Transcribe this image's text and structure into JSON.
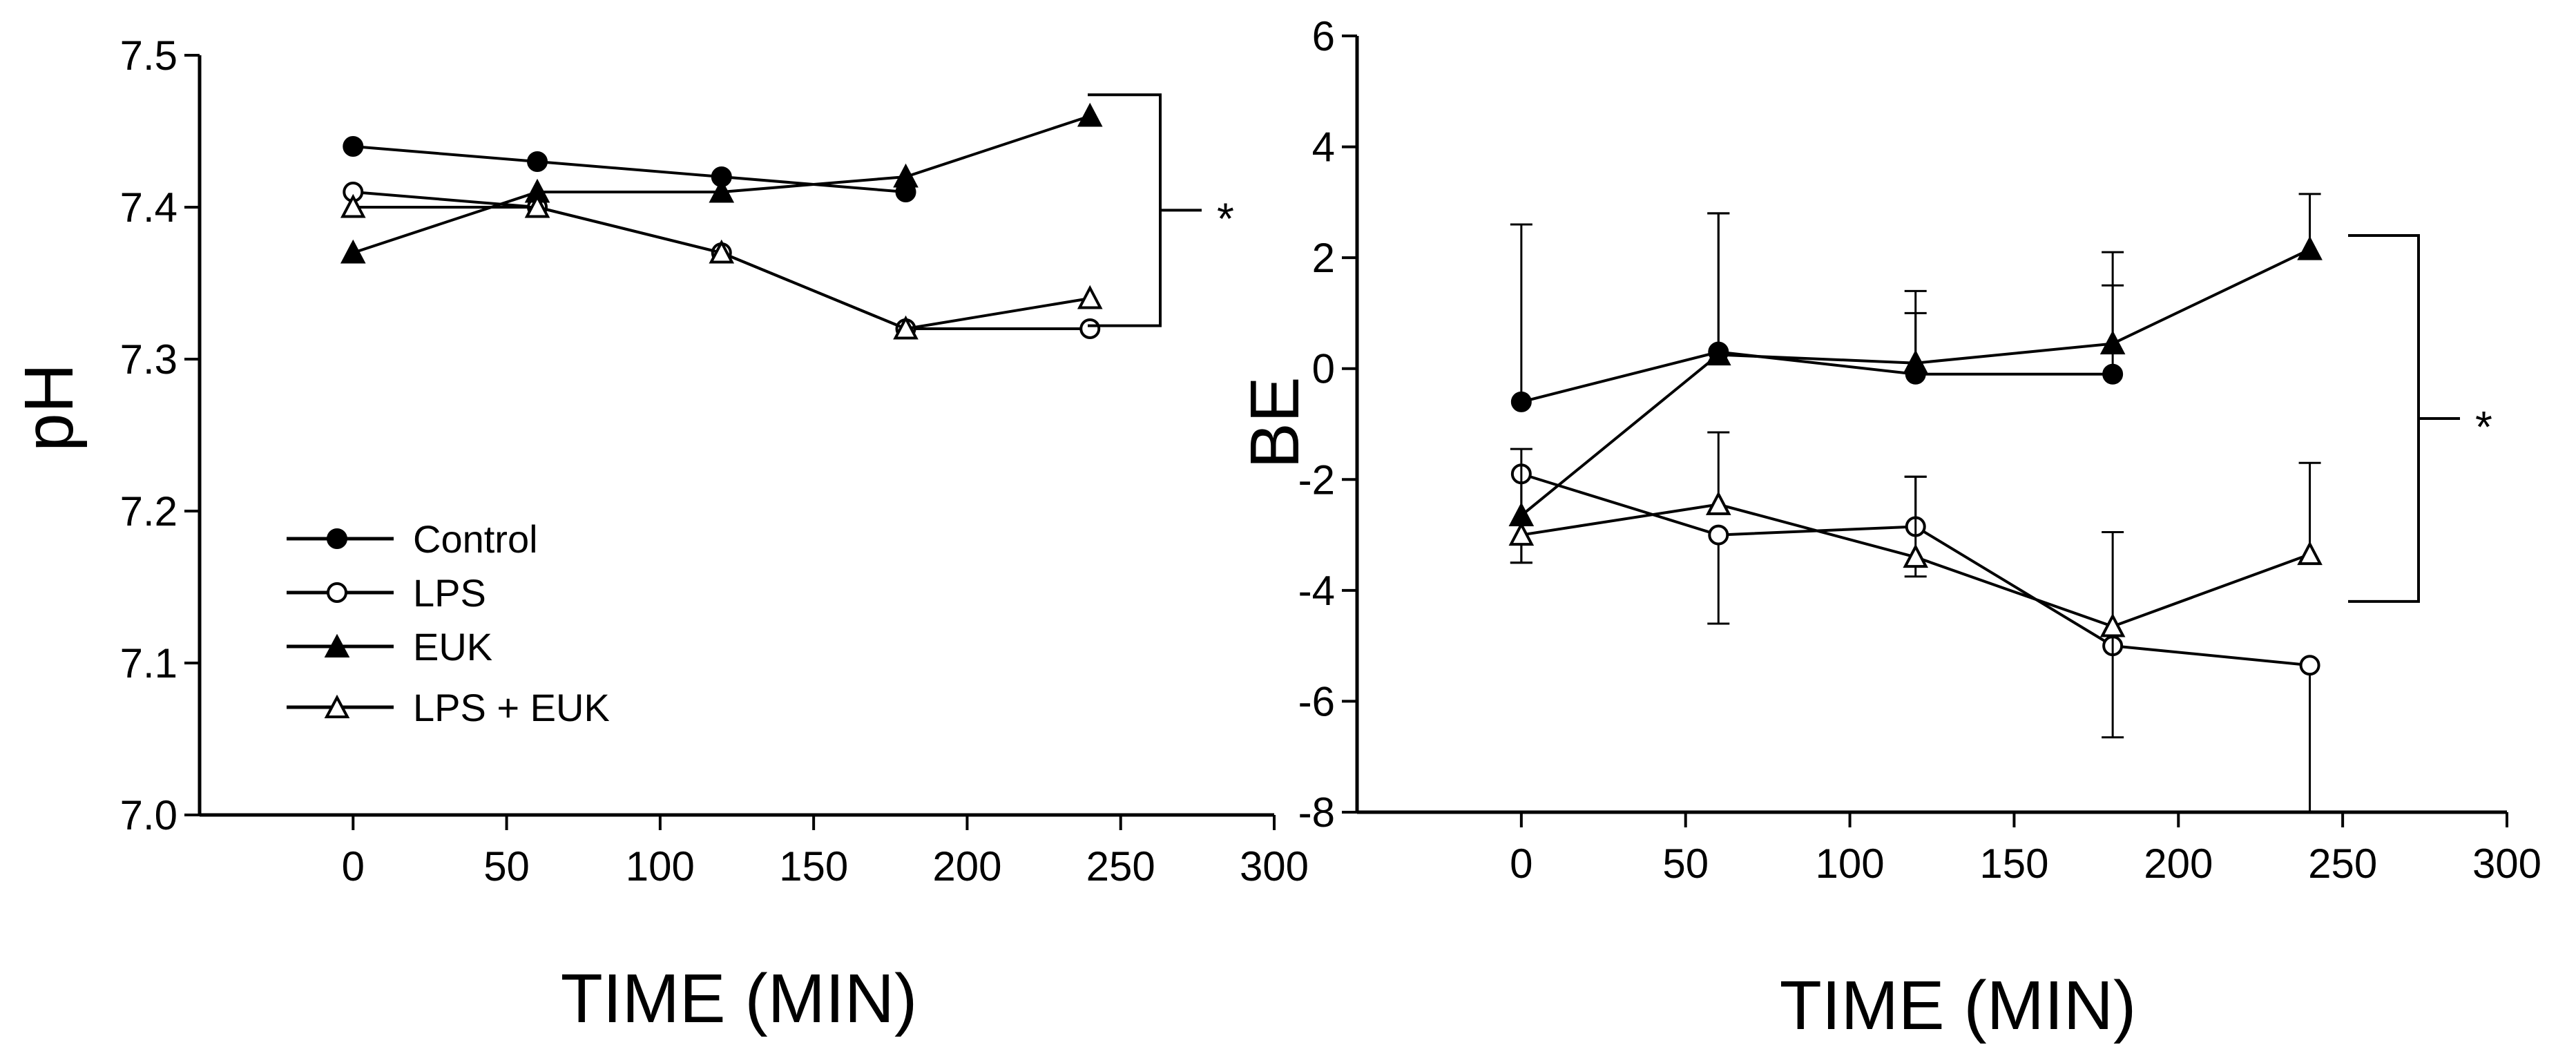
{
  "chart_data": [
    {
      "type": "line",
      "panel": "left",
      "title": "",
      "xlabel": "TIME (MIN)",
      "ylabel": "pH",
      "xlim": [
        -50,
        300
      ],
      "ylim": [
        7.0,
        7.5
      ],
      "xticks": [
        0,
        50,
        100,
        150,
        200,
        250,
        300
      ],
      "yticks": [
        7.0,
        7.1,
        7.2,
        7.3,
        7.4,
        7.5
      ],
      "x_tick_labels": [
        "0",
        "50",
        "100",
        "150",
        "200",
        "250",
        "300"
      ],
      "y_tick_labels": [
        "7.0",
        "7.1",
        "7.2",
        "7.3",
        "7.4",
        "7.5"
      ],
      "legend_position": "lower-left",
      "significance_label": "*",
      "series": [
        {
          "name": "Control",
          "marker": "filled-circle",
          "x": [
            0,
            60,
            120,
            180
          ],
          "values": [
            7.44,
            7.43,
            7.42,
            7.41
          ]
        },
        {
          "name": "LPS",
          "marker": "open-circle",
          "x": [
            0,
            60,
            120,
            180,
            240
          ],
          "values": [
            7.41,
            7.4,
            7.37,
            7.32,
            7.32
          ]
        },
        {
          "name": "EUK",
          "marker": "filled-triangle",
          "x": [
            0,
            60,
            120,
            180,
            240
          ],
          "values": [
            7.37,
            7.41,
            7.41,
            7.42,
            7.46
          ]
        },
        {
          "name": "LPS + EUK",
          "marker": "open-triangle",
          "x": [
            0,
            60,
            120,
            180,
            240
          ],
          "values": [
            7.4,
            7.4,
            7.37,
            7.32,
            7.34
          ]
        }
      ]
    },
    {
      "type": "line",
      "panel": "right",
      "title": "",
      "xlabel": "TIME (MIN)",
      "ylabel": "BE",
      "xlim": [
        -50,
        300
      ],
      "ylim": [
        -8,
        6
      ],
      "xticks": [
        0,
        50,
        100,
        150,
        200,
        250,
        300
      ],
      "yticks": [
        -8,
        -6,
        -4,
        -2,
        0,
        2,
        4,
        6
      ],
      "x_tick_labels": [
        "0",
        "50",
        "100",
        "150",
        "200",
        "250",
        "300"
      ],
      "y_tick_labels": [
        "-8",
        "-6",
        "-4",
        "-2",
        "0",
        "2",
        "4",
        "6"
      ],
      "significance_label": "*",
      "series": [
        {
          "name": "Control",
          "marker": "filled-circle",
          "x": [
            0,
            60,
            120,
            180
          ],
          "values": [
            -0.6,
            0.3,
            -0.1,
            -0.1
          ],
          "error_up": [
            3.2,
            2.5,
            1.1,
            1.6
          ],
          "error_down": [
            0,
            0,
            0,
            0
          ]
        },
        {
          "name": "LPS",
          "marker": "open-circle",
          "x": [
            0,
            60,
            120,
            180,
            240
          ],
          "values": [
            -1.9,
            -3.0,
            -2.85,
            -5.0,
            -5.35
          ],
          "error_up": [
            0,
            0,
            0.9,
            0,
            0
          ],
          "error_down": [
            1.6,
            1.6,
            0,
            0,
            2.65
          ]
        },
        {
          "name": "EUK",
          "marker": "filled-triangle",
          "x": [
            0,
            60,
            120,
            180,
            240
          ],
          "values": [
            -2.65,
            0.25,
            0.1,
            0.45,
            2.15
          ],
          "error_up": [
            0,
            2.55,
            1.3,
            1.65,
            1.0
          ],
          "error_down": [
            0,
            0,
            0,
            0,
            0
          ]
        },
        {
          "name": "LPS + EUK",
          "marker": "open-triangle",
          "x": [
            0,
            60,
            120,
            180,
            240
          ],
          "values": [
            -3.0,
            -2.45,
            -3.4,
            -4.65,
            -3.35
          ],
          "error_up": [
            1.55,
            1.3,
            1.45,
            1.7,
            1.65
          ],
          "error_down": [
            0.5,
            0,
            0.35,
            2.0,
            0
          ]
        }
      ]
    }
  ]
}
